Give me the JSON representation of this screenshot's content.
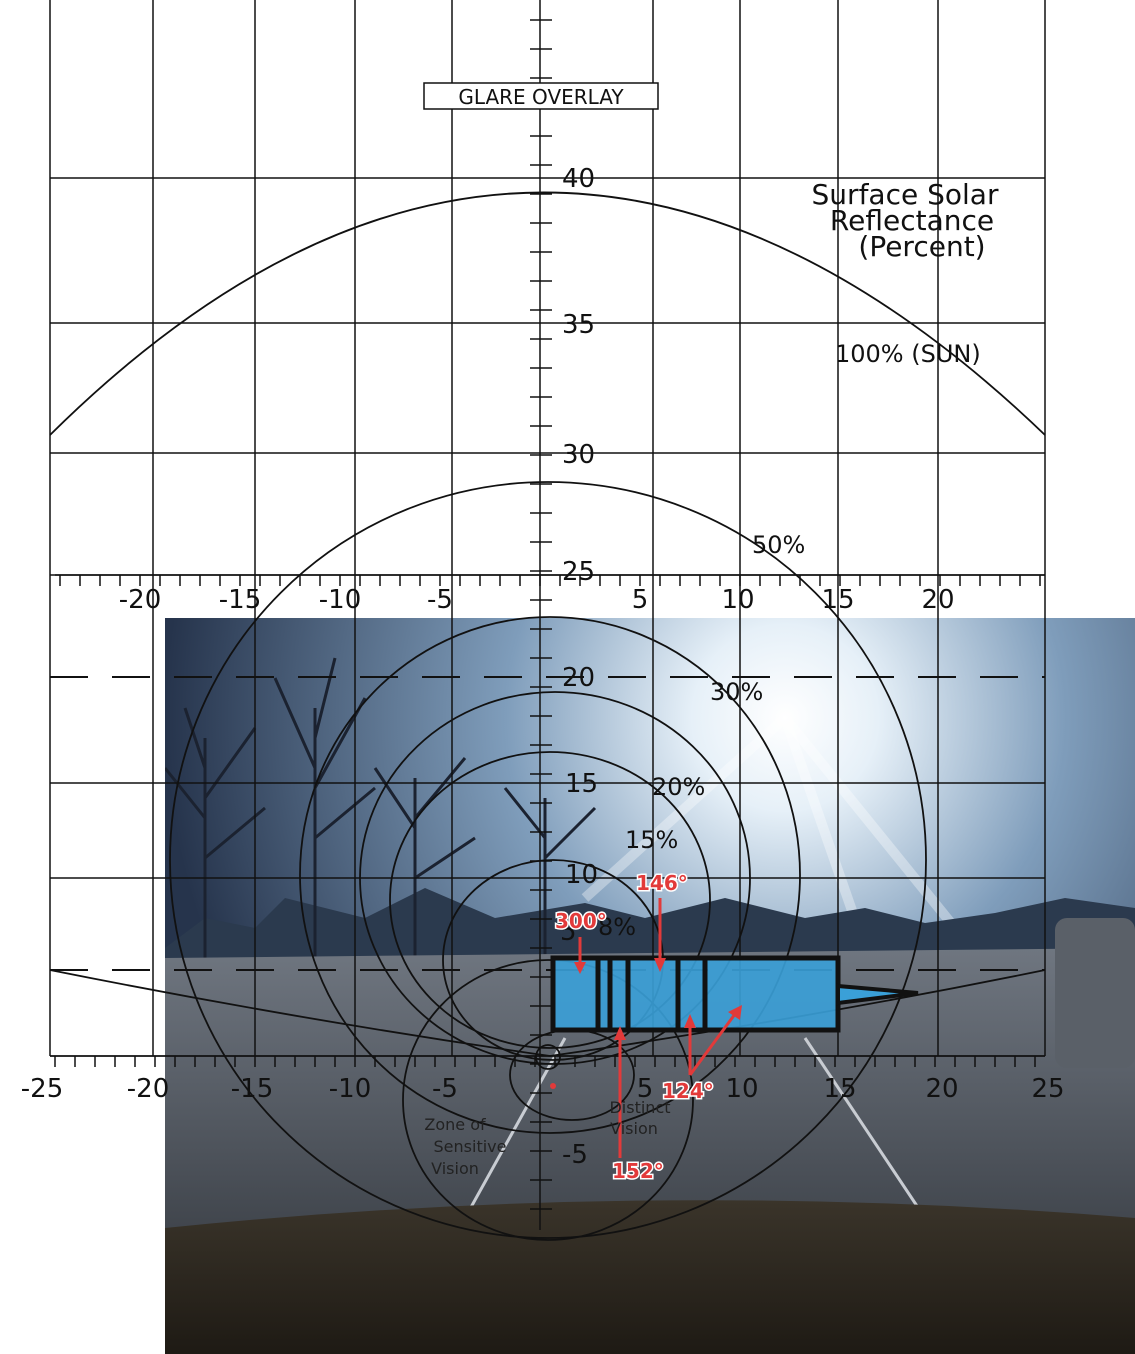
{
  "overlay_title": "GLARE OVERLAY",
  "legend": {
    "line1": "Surface Solar",
    "line2": "Reflectance",
    "line3": "(Percent)"
  },
  "contour_labels": [
    {
      "id": "sun",
      "text": "100% (SUN)"
    },
    {
      "id": "p50",
      "text": "50%"
    },
    {
      "id": "p30",
      "text": "30%"
    },
    {
      "id": "p20",
      "text": "20%"
    },
    {
      "id": "p15",
      "text": "15%"
    },
    {
      "id": "p8",
      "text": "8%"
    }
  ],
  "axis_labels": {
    "upper_x": [
      "-20",
      "-15",
      "-10",
      "-5",
      "5",
      "10",
      "15",
      "20"
    ],
    "lower_x": [
      "-25",
      "-20",
      "-15",
      "-10",
      "-5",
      "5",
      "10",
      "15",
      "20",
      "25"
    ],
    "vertical": [
      "40",
      "35",
      "30",
      "25",
      "20",
      "15",
      "10",
      "5",
      "-5"
    ]
  },
  "zone_labels": {
    "sensitive": [
      "Zone of",
      "Sensitive",
      "Vision"
    ],
    "distinct": [
      "Distinct",
      "Vision"
    ]
  },
  "angles": [
    {
      "id": "a300",
      "text": "300°"
    },
    {
      "id": "a146",
      "text": "146°"
    },
    {
      "id": "a124",
      "text": "124°"
    },
    {
      "id": "a152",
      "text": "152°"
    }
  ],
  "colors": {
    "sky_top": "#2b3b55",
    "sky_glow": "#e6f0f8",
    "road": "#3a3f46",
    "dashboard": "#2a251c",
    "glare_box": "#3aa0d8",
    "arrow": "#e23a3a"
  }
}
